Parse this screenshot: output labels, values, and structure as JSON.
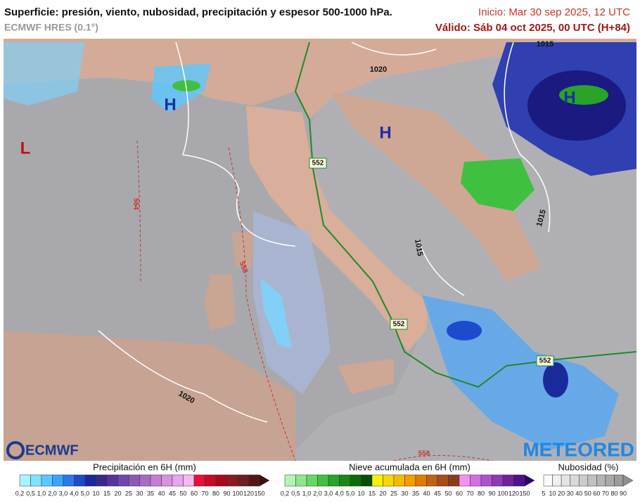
{
  "header": {
    "title": "Superficie: presión, viento, nubosidad, precipitación y espesor 500-1000 hPa.",
    "model": "ECMWF HRES (0.1°)",
    "init": "Inicio: Mar 30 sep 2025, 12 UTC",
    "valid": "Válido: Sáb 04 oct 2025, 00 UTC (H+84)"
  },
  "map": {
    "labels": [
      "H",
      "H",
      "H",
      "L",
      "1020",
      "1015",
      "1015",
      "1015",
      "1020",
      "552",
      "552",
      "552",
      "564",
      "558",
      "558"
    ]
  },
  "logos": {
    "left": "ECMWF",
    "right": "METEORED"
  },
  "legends": [
    {
      "title": "Precipitación en 6H (mm)",
      "labels": [
        "0,2",
        "0,5",
        "1,0",
        "2,0",
        "3,0",
        "4,0",
        "5,0",
        "10",
        "15",
        "20",
        "25",
        "30",
        "35",
        "40",
        "45",
        "50",
        "60",
        "70",
        "80",
        "90",
        "100",
        "120",
        "150"
      ],
      "colors": [
        "#a8f4ff",
        "#80e4ff",
        "#5cc8ff",
        "#3aa4ff",
        "#2a78f0",
        "#1c4ccc",
        "#1a2a9c",
        "#3a2888",
        "#55349c",
        "#7046aa",
        "#8c58b8",
        "#a86ac6",
        "#c47cd4",
        "#d890e0",
        "#eca4ec",
        "#f6b8f0",
        "#e8103a",
        "#c80c24",
        "#a80a1c",
        "#8a1a20",
        "#6e1e20",
        "#521818",
        "#3a1010"
      ]
    },
    {
      "title": "Nieve acumulada en 6H (mm)",
      "labels": [
        "0,2",
        "0,5",
        "1,0",
        "2,0",
        "3,0",
        "4,0",
        "5,0",
        "10",
        "15",
        "20",
        "25",
        "30",
        "35",
        "40",
        "45",
        "50",
        "60",
        "70",
        "80",
        "90",
        "100",
        "120",
        "150"
      ],
      "colors": [
        "#b4f4b4",
        "#8ce88c",
        "#64d864",
        "#40c040",
        "#28a428",
        "#188818",
        "#0c6c0c",
        "#005000",
        "#f4f400",
        "#f4d800",
        "#f4bc00",
        "#f49c00",
        "#e07c00",
        "#c46010",
        "#a84c18",
        "#8c3c1c",
        "#f490f4",
        "#d070e0",
        "#b050cc",
        "#9038b8",
        "#7020a0",
        "#501088",
        "#300070"
      ]
    },
    {
      "title": "Nubosidad (%)",
      "labels": [
        "5",
        "10",
        "20",
        "30",
        "40",
        "50",
        "60",
        "70",
        "80",
        "90"
      ],
      "colors": [
        "#fafafa",
        "#f0f0f0",
        "#e4e4e4",
        "#d8d8d8",
        "#cccccc",
        "#c0c0c0",
        "#b4b4b4",
        "#a8a8a8",
        "#9c9c9c",
        "#909090"
      ]
    }
  ]
}
